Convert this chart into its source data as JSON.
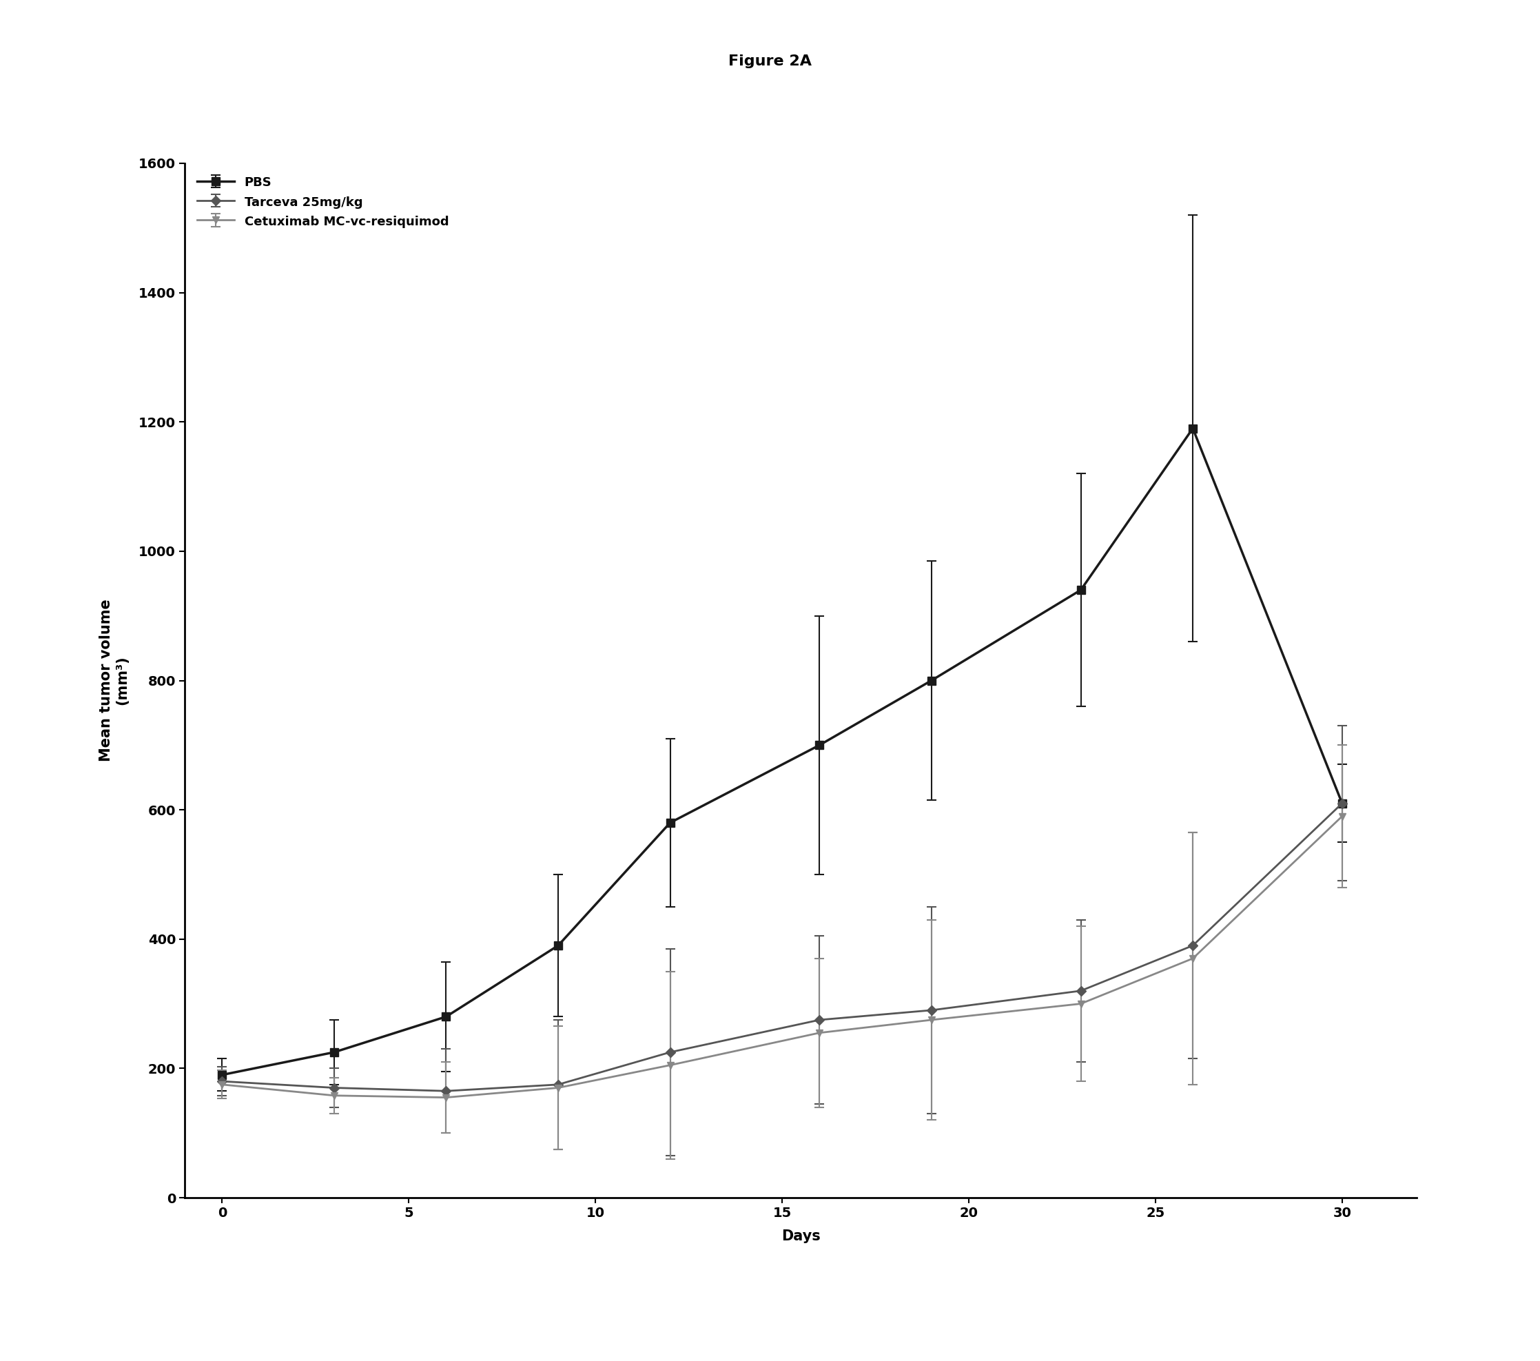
{
  "title": "Figure 2A",
  "xlabel": "Days",
  "ylabel": "Mean tumor volume\n(mm³)",
  "xlim": [
    -1,
    32
  ],
  "ylim": [
    0,
    1600
  ],
  "yticks": [
    0,
    200,
    400,
    600,
    800,
    1000,
    1200,
    1400,
    1600
  ],
  "xticks": [
    0,
    5,
    10,
    15,
    20,
    25,
    30
  ],
  "series": [
    {
      "label": "PBS",
      "color": "#1a1a1a",
      "linewidth": 2.5,
      "marker": "s",
      "markersize": 8,
      "x": [
        0,
        3,
        6,
        9,
        12,
        16,
        19,
        23,
        26,
        30
      ],
      "y": [
        190,
        225,
        280,
        390,
        580,
        700,
        800,
        940,
        1190,
        610
      ],
      "yerr": [
        25,
        50,
        85,
        110,
        130,
        200,
        185,
        180,
        330,
        60
      ]
    },
    {
      "label": "Tarceva 25mg/kg",
      "color": "#555555",
      "linewidth": 2.0,
      "marker": "D",
      "markersize": 7,
      "x": [
        0,
        3,
        6,
        9,
        12,
        16,
        19,
        23,
        26,
        30
      ],
      "y": [
        180,
        170,
        165,
        175,
        225,
        275,
        290,
        320,
        390,
        610
      ],
      "yerr": [
        22,
        30,
        65,
        100,
        160,
        130,
        160,
        110,
        175,
        120
      ]
    },
    {
      "label": "Cetuximab MC-vc-resiquimod",
      "color": "#888888",
      "linewidth": 2.0,
      "marker": "v",
      "markersize": 7,
      "x": [
        0,
        3,
        6,
        9,
        12,
        16,
        19,
        23,
        26,
        30
      ],
      "y": [
        175,
        158,
        155,
        170,
        205,
        255,
        275,
        300,
        370,
        590
      ],
      "yerr": [
        22,
        28,
        55,
        95,
        145,
        115,
        155,
        120,
        195,
        110
      ]
    }
  ],
  "background_color": "#ffffff",
  "title_fontsize": 16,
  "label_fontsize": 15,
  "tick_fontsize": 14,
  "legend_fontsize": 13
}
